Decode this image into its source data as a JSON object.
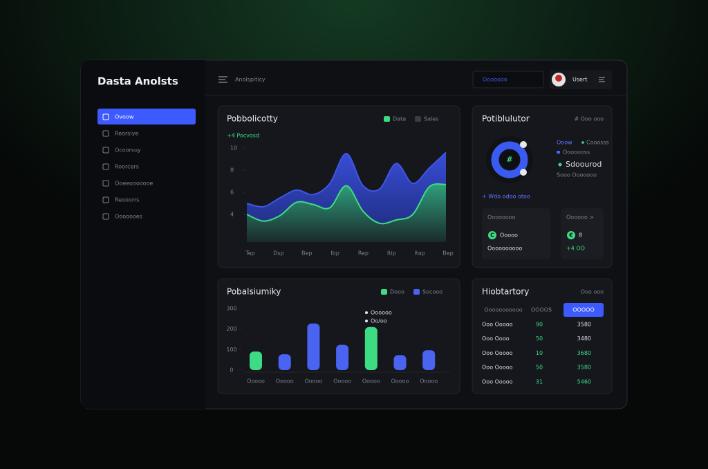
{
  "sidebar": {
    "title": "Dasta Anolsts",
    "nav": [
      "Ovoow",
      "Reorsiye",
      "Ocoorsuy",
      "Roorcers",
      "Ooeeooooooe",
      "Reooorrs",
      "Ooooooes"
    ]
  },
  "header": {
    "title": "Anolspiticy",
    "search": "Ooooooo",
    "user": "Usert"
  },
  "area_chart": {
    "type": "area",
    "title": "Pobbolicotty",
    "subtitle": "+4 Pocvosd",
    "x_labels": [
      "Tep",
      "Dsp",
      "Bep",
      "Ibp",
      "Rep",
      "Itip",
      "Itap",
      "Bep"
    ],
    "series": [
      {
        "name": "Sales",
        "color": "#3f55e6",
        "values": [
          5.0,
          4.7,
          5.5,
          6.2,
          5.8,
          6.8,
          9.5,
          6.6,
          6.3,
          8.6,
          6.8,
          8.2,
          9.6
        ]
      },
      {
        "name": "Data",
        "color": "#3ddc84",
        "values": [
          4.0,
          3.4,
          3.9,
          5.1,
          4.9,
          4.6,
          6.6,
          4.3,
          3.2,
          3.5,
          4.0,
          6.5,
          6.7
        ]
      }
    ],
    "ylim": [
      1.5,
      10.5
    ],
    "yticks": [
      10,
      8,
      6,
      4
    ]
  },
  "distribution": {
    "title": "Potiblulutor",
    "menu": "# Ooo ooo",
    "center": "#",
    "legend": [
      "Ooow",
      "Cooosss",
      "Ooooooss"
    ],
    "highlight": "Sdoourod",
    "note": "Sooo Ooooooo",
    "link": "+ Wdo odoo otoo",
    "cards": [
      {
        "label": "Oooooooo",
        "icon": "C",
        "name": "Ooooo",
        "sub": "Oooooooooo"
      },
      {
        "label": "Oooooo >",
        "icon": "€",
        "name": "8",
        "sub": "+4 OO"
      }
    ]
  },
  "bar_chart": {
    "type": "bar",
    "title": "Pobalsiumiky",
    "legend": [
      {
        "name": "Dooo",
        "color": "#3ddc84"
      },
      {
        "name": "Socooo",
        "color": "#4a63f0"
      }
    ],
    "categories": [
      "Ooooo",
      "Ooooo",
      "Ooooo",
      "Ooooo",
      "Ooooo",
      "Ooooo",
      "Ooooo"
    ],
    "values": [
      90,
      77,
      227,
      123,
      210,
      73,
      97
    ],
    "colors": [
      "#3ddc84",
      "#4a63f0",
      "#4a63f0",
      "#4a63f0",
      "#3ddc84",
      "#4a63f0",
      "#4a63f0"
    ],
    "ylim": [
      0,
      300
    ],
    "yticks": [
      300,
      200,
      100,
      0
    ],
    "tooltip": [
      "Oooooo",
      "Oo/oo"
    ]
  },
  "history": {
    "title": "Hiobtartory",
    "menu": "Ooo ooo",
    "tabs": [
      "Ooooooooooo",
      "OOOOS",
      "OOOOO"
    ],
    "rows": [
      [
        "Ooo Ooooo",
        "90",
        "3580"
      ],
      [
        "Ooo Oooo",
        "50",
        "3480"
      ],
      [
        "Ooo Ooooo",
        "10",
        "3680"
      ],
      [
        "Ooo Ooooo",
        "50",
        "3580"
      ],
      [
        "Ooo Ooooo",
        "31",
        "5460"
      ]
    ]
  }
}
